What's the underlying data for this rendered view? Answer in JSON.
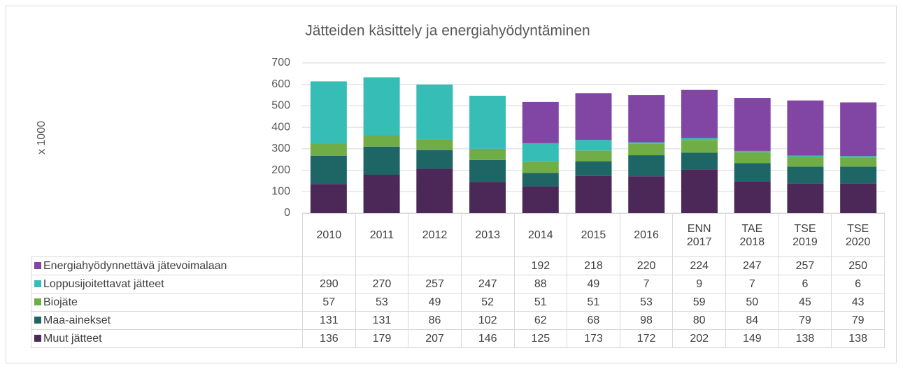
{
  "chart_data": {
    "type": "bar",
    "stacked": true,
    "title": "Jätteiden käsittely ja energiahyödyntäminen",
    "ylabel": "x 1000",
    "categories": [
      "2010",
      "2011",
      "2012",
      "2013",
      "2014",
      "2015",
      "2016",
      "ENN 2017",
      "TAE 2018",
      "TSE 2019",
      "TSE 2020"
    ],
    "series": [
      {
        "name": "Muut jätteet",
        "color": "#4b2857",
        "values": [
          136,
          179,
          207,
          146,
          125,
          173,
          172,
          202,
          149,
          138,
          138
        ]
      },
      {
        "name": "Maa-ainekset",
        "color": "#1e6565",
        "values": [
          131,
          131,
          86,
          102,
          62,
          68,
          98,
          80,
          84,
          79,
          79
        ]
      },
      {
        "name": "Biojäte",
        "color": "#70ad47",
        "values": [
          57,
          53,
          49,
          52,
          51,
          51,
          53,
          59,
          50,
          45,
          43
        ]
      },
      {
        "name": "Loppusijoitettavat jätteet",
        "color": "#36bdb5",
        "values": [
          290,
          270,
          257,
          247,
          88,
          49,
          7,
          9,
          7,
          6,
          6
        ]
      },
      {
        "name": "Energiahyödynnettävä jätevoimalaan",
        "color": "#8145a3",
        "values": [
          null,
          null,
          null,
          null,
          192,
          218,
          220,
          224,
          247,
          257,
          250
        ]
      }
    ],
    "ylim": [
      0,
      700
    ],
    "yticks": [
      0,
      100,
      200,
      300,
      400,
      500,
      600,
      700
    ],
    "grid": true
  }
}
